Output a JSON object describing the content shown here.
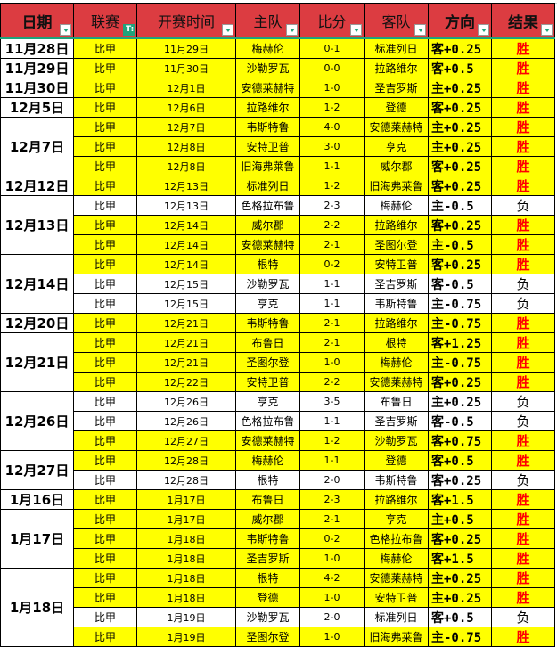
{
  "headers": [
    {
      "label": "日期",
      "bold": true,
      "filter": false
    },
    {
      "label": "联赛",
      "bold": false,
      "filter": true
    },
    {
      "label": "开赛时间",
      "bold": false,
      "filter": false
    },
    {
      "label": "主队",
      "bold": false,
      "filter": false
    },
    {
      "label": "比分",
      "bold": false,
      "filter": false
    },
    {
      "label": "客队",
      "bold": false,
      "filter": false
    },
    {
      "label": "方向",
      "bold": true,
      "filter": false
    },
    {
      "label": "结果",
      "bold": true,
      "filter": false
    }
  ],
  "colors": {
    "header": "#dc3c41",
    "highlight": "#ffff00",
    "win": "#ff0000",
    "filter": "#1fa37c"
  },
  "groups": [
    {
      "date": "11月28日",
      "rows": [
        [
          "比甲",
          "11月29日",
          "梅赫伦",
          "0-1",
          "标准列日",
          "客+0.25",
          "胜"
        ]
      ]
    },
    {
      "date": "11月29日",
      "rows": [
        [
          "比甲",
          "11月30日",
          "沙勒罗瓦",
          "0-0",
          "拉路维尔",
          "客+0.5",
          "胜"
        ]
      ]
    },
    {
      "date": "11月30日",
      "rows": [
        [
          "比甲",
          "12月1日",
          "安德莱赫特",
          "1-0",
          "圣吉罗斯",
          "主+0.25",
          "胜"
        ]
      ]
    },
    {
      "date": "12月5日",
      "rows": [
        [
          "比甲",
          "12月6日",
          "拉路维尔",
          "1-2",
          "登德",
          "客+0.25",
          "胜"
        ]
      ]
    },
    {
      "date": "12月7日",
      "rows": [
        [
          "比甲",
          "12月7日",
          "韦斯特鲁",
          "4-0",
          "安德莱赫特",
          "主+0.25",
          "胜"
        ],
        [
          "比甲",
          "12月8日",
          "安特卫普",
          "3-0",
          "亨克",
          "主+0.25",
          "胜"
        ],
        [
          "比甲",
          "12月8日",
          "旧海弗莱鲁",
          "1-1",
          "威尔郡",
          "客+0.25",
          "胜"
        ]
      ]
    },
    {
      "date": "12月12日",
      "rows": [
        [
          "比甲",
          "12月13日",
          "标准列日",
          "1-2",
          "旧海弗莱鲁",
          "客+0.25",
          "胜"
        ]
      ]
    },
    {
      "date": "12月13日",
      "rows": [
        [
          "比甲",
          "12月13日",
          "色格拉布鲁",
          "2-3",
          "梅赫伦",
          "主-0.5",
          "负"
        ],
        [
          "比甲",
          "12月14日",
          "威尔郡",
          "2-2",
          "拉路维尔",
          "客+0.25",
          "胜"
        ],
        [
          "比甲",
          "12月14日",
          "安德莱赫特",
          "2-1",
          "圣图尔登",
          "主-0.5",
          "胜"
        ]
      ]
    },
    {
      "date": "12月14日",
      "rows": [
        [
          "比甲",
          "12月14日",
          "根特",
          "0-2",
          "安特卫普",
          "客+0.25",
          "胜"
        ],
        [
          "比甲",
          "12月15日",
          "沙勒罗瓦",
          "1-1",
          "圣吉罗斯",
          "客-0.5",
          "负"
        ],
        [
          "比甲",
          "12月15日",
          "亨克",
          "1-1",
          "韦斯特鲁",
          "主-0.75",
          "负"
        ]
      ]
    },
    {
      "date": "12月20日",
      "rows": [
        [
          "比甲",
          "12月21日",
          "韦斯特鲁",
          "2-1",
          "拉路维尔",
          "主-0.75",
          "胜"
        ]
      ]
    },
    {
      "date": "12月21日",
      "rows": [
        [
          "比甲",
          "12月21日",
          "布鲁日",
          "2-1",
          "根特",
          "客+1.25",
          "胜"
        ],
        [
          "比甲",
          "12月21日",
          "圣图尔登",
          "1-0",
          "梅赫伦",
          "主-0.75",
          "胜"
        ],
        [
          "比甲",
          "12月22日",
          "安特卫普",
          "2-2",
          "安德莱赫特",
          "客+0.25",
          "胜"
        ]
      ]
    },
    {
      "date": "12月26日",
      "rows": [
        [
          "比甲",
          "12月26日",
          "亨克",
          "3-5",
          "布鲁日",
          "主+0.25",
          "负"
        ],
        [
          "比甲",
          "12月26日",
          "色格拉布鲁",
          "1-1",
          "圣吉罗斯",
          "客-0.5",
          "负"
        ],
        [
          "比甲",
          "12月27日",
          "安德莱赫特",
          "1-2",
          "沙勒罗瓦",
          "客+0.75",
          "胜"
        ]
      ]
    },
    {
      "date": "12月27日",
      "rows": [
        [
          "比甲",
          "12月28日",
          "梅赫伦",
          "1-1",
          "登德",
          "客+0.5",
          "胜"
        ],
        [
          "比甲",
          "12月28日",
          "根特",
          "2-0",
          "韦斯特鲁",
          "客+0.25",
          "负"
        ]
      ]
    },
    {
      "date": "1月16日",
      "rows": [
        [
          "比甲",
          "1月17日",
          "布鲁日",
          "2-3",
          "拉路维尔",
          "客+1.5",
          "胜"
        ]
      ]
    },
    {
      "date": "1月17日",
      "rows": [
        [
          "比甲",
          "1月17日",
          "威尔郡",
          "2-1",
          "亨克",
          "主+0.5",
          "胜"
        ],
        [
          "比甲",
          "1月18日",
          "韦斯特鲁",
          "0-2",
          "色格拉布鲁",
          "客+0.25",
          "胜"
        ],
        [
          "比甲",
          "1月18日",
          "圣吉罗斯",
          "1-0",
          "梅赫伦",
          "客+1.5",
          "胜"
        ]
      ]
    },
    {
      "date": "1月18日",
      "rows": [
        [
          "比甲",
          "1月18日",
          "根特",
          "4-2",
          "安德莱赫特",
          "主+0.25",
          "胜"
        ],
        [
          "比甲",
          "1月18日",
          "登德",
          "1-0",
          "安特卫普",
          "主+0.25",
          "胜"
        ],
        [
          "比甲",
          "1月19日",
          "沙勒罗瓦",
          "2-0",
          "标准列日",
          "客+0.5",
          "负"
        ],
        [
          "比甲",
          "1月19日",
          "圣图尔登",
          "1-0",
          "旧海弗莱鲁",
          "主-0.75",
          "胜"
        ]
      ]
    }
  ]
}
